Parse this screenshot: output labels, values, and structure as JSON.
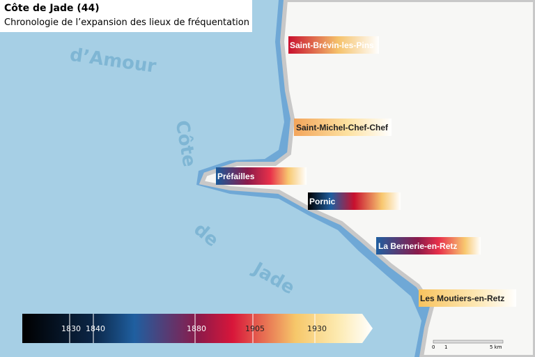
{
  "header": {
    "title": "Côte de Jade (44)",
    "subtitle": "Chronologie de l’expansion des lieux de fréquentation"
  },
  "sea_labels": [
    "d’Amour",
    "Côte",
    "de",
    "Jade"
  ],
  "places": [
    "Saint-Brévin-les-Pins",
    "Saint-Michel-Chef-Chef",
    "Préfailles",
    "Pornic",
    "La Bernerie-en-Retz",
    "Les Moutiers-en-Retz"
  ],
  "legend": {
    "ticks": [
      "1830",
      "1840",
      "1880",
      "1905",
      "1930"
    ]
  },
  "scale": {
    "labels": [
      "0",
      "1",
      "5 km"
    ]
  }
}
